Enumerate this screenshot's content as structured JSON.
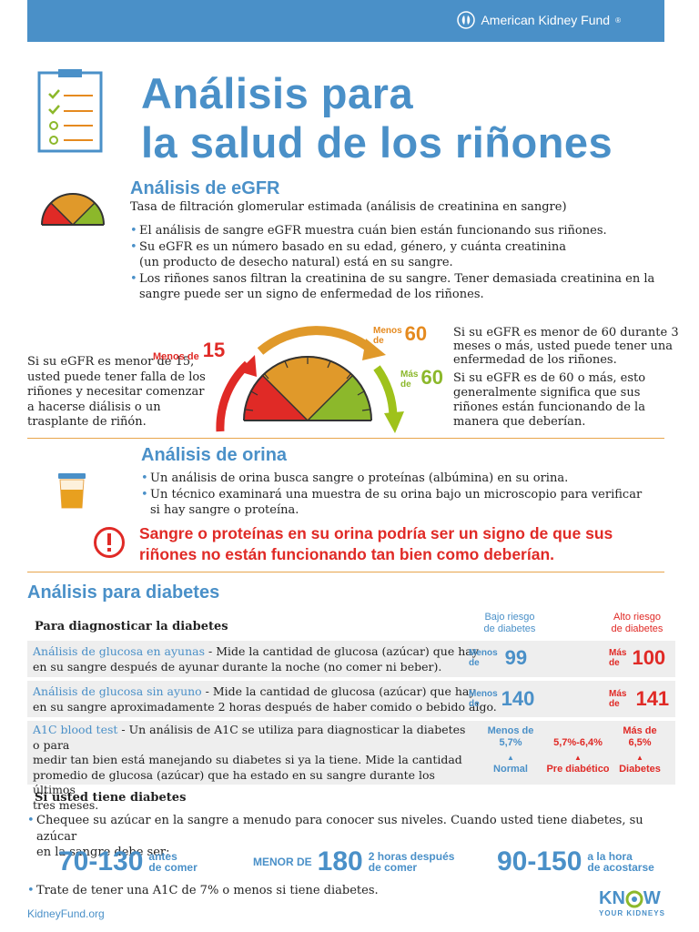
{
  "brand": {
    "name": "American Kidney Fund",
    "mark": "®"
  },
  "title": {
    "line1": "Análisis para",
    "line2": "la salud de los riñones"
  },
  "egfr": {
    "heading": "Análisis de eGFR",
    "subtitle": "Tasa de filtración glomerular estimada (análisis de creatinina en sangre)",
    "bullets": [
      "El análisis de sangre eGFR muestra cuán bien están funcionando sus riñones.",
      "Su eGFR es un número basado en su edad, género, y cuánta creatinina",
      "Los riñones sanos filtran la creatinina de su sangre. Tener demasiada creatinina en la"
    ],
    "bullet2_cont": "(un producto de desecho natural) está en su sangre.",
    "bullet3_cont": "sangre puede ser un signo de enfermedad de los riñones.",
    "left_note": [
      "Si su eGFR es menor de 15,",
      "usted puede tener falla de los",
      "riñones y necesitar comenzar",
      "a hacerse diálisis o un",
      "trasplante de riñón."
    ],
    "label_15_prefix": "Menos de",
    "label_15_num": "15",
    "label_m60_prefix1": "Menos",
    "label_m60_prefix2": "de",
    "label_m60_num": "60",
    "label_p60_prefix1": "Más",
    "label_p60_prefix2": "de",
    "label_p60_num": "60",
    "right_note1": [
      "Si su eGFR es menor de 60 durante 3",
      "meses o más, usted puede tener una",
      "enfermedad de los riñones."
    ],
    "right_note2": [
      "Si su eGFR es de 60 o más, esto",
      "generalmente significa que sus",
      "riñones están funcionando de la",
      "manera que deberían."
    ]
  },
  "orina": {
    "heading": "Análisis de orina",
    "bullets": [
      "Un análisis de orina busca sangre o proteínas (albúmina) en su orina.",
      "Un técnico examinará una muestra de su orina bajo un microscopio para verificar"
    ],
    "bullet2_cont": "si hay sangre o proteína.",
    "warning": [
      "Sangre o proteínas en su orina podría ser un signo de que sus",
      "riñones no están funcionando tan bien como deberían."
    ]
  },
  "diabetes": {
    "heading": "Análisis para diabetes",
    "diagnose_label": "Para diagnosticar la diabetes",
    "low_risk": [
      "Bajo riesgo",
      "de diabetes"
    ],
    "high_risk": [
      "Alto riesgo",
      "de diabetes"
    ],
    "rows": [
      {
        "name": "Análisis de glucosa en ayunas",
        "text1": " - Mide la cantidad de glucosa (azúcar) que hay",
        "text2": "en su sangre después de ayunar durante la noche (no comer ni beber).",
        "low_pre1": "Menos",
        "low_pre2": "de",
        "low_num": "99",
        "high_pre1": "Más",
        "high_pre2": "de",
        "high_num": "100"
      },
      {
        "name": "Análisis de glucosa sin ayuno",
        "text1": " - Mide la cantidad de glucosa (azúcar) que hay",
        "text2": "en su sangre aproximadamente 2 horas después de haber comido o bebido algo.",
        "low_pre1": "Menos",
        "low_pre2": "de",
        "low_num": "140",
        "high_pre1": "Más",
        "high_pre2": "de",
        "high_num": "141"
      }
    ],
    "a1c": {
      "name": "A1C blood test",
      "text1": " - Un análisis de A1C se utiliza para diagnosticar la diabetes o para",
      "lines": [
        "medir tan bien está manejando su diabetes si ya la tiene. Mide la cantidad",
        "promedio de glucosa (azúcar) que ha estado en su sangre durante los últimos",
        "tres meses."
      ],
      "col1_top": [
        "Menos de",
        "5,7%"
      ],
      "col1_label": "Normal",
      "col2_top": "5,7%-6,4%",
      "col2_label": "Pre diabético",
      "col3_top": [
        "Más de",
        "6,5%"
      ],
      "col3_label": "Diabetes"
    },
    "have_label": "Si usted tiene diabetes",
    "check": [
      "Chequee su azúcar en la sangre a menudo para conocer sus niveles. Cuando usted tiene diabetes, su azúcar",
      "en la sangre debe ser:"
    ],
    "t1_num": "70-130",
    "t1_label": [
      "antes",
      "de comer"
    ],
    "t2_prefix": "MENOR DE",
    "t2_num": "180",
    "t2_label": [
      "2 horas después",
      "de comer"
    ],
    "t3_num": "90-150",
    "t3_label": [
      "a la hora",
      "de acostarse"
    ],
    "a1c_goal": "Trate de tener una A1C de 7% o menos si tiene diabetes."
  },
  "footer": {
    "site": "KidneyFund.org",
    "know1": "KN",
    "know2": "W",
    "knowsub": "YOUR KIDNEYS"
  }
}
